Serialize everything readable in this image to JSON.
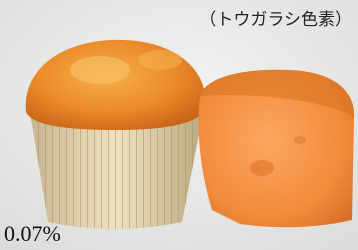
{
  "photo": {
    "caption": "（トウガラシ色素）",
    "label": "0.07%"
  }
}
